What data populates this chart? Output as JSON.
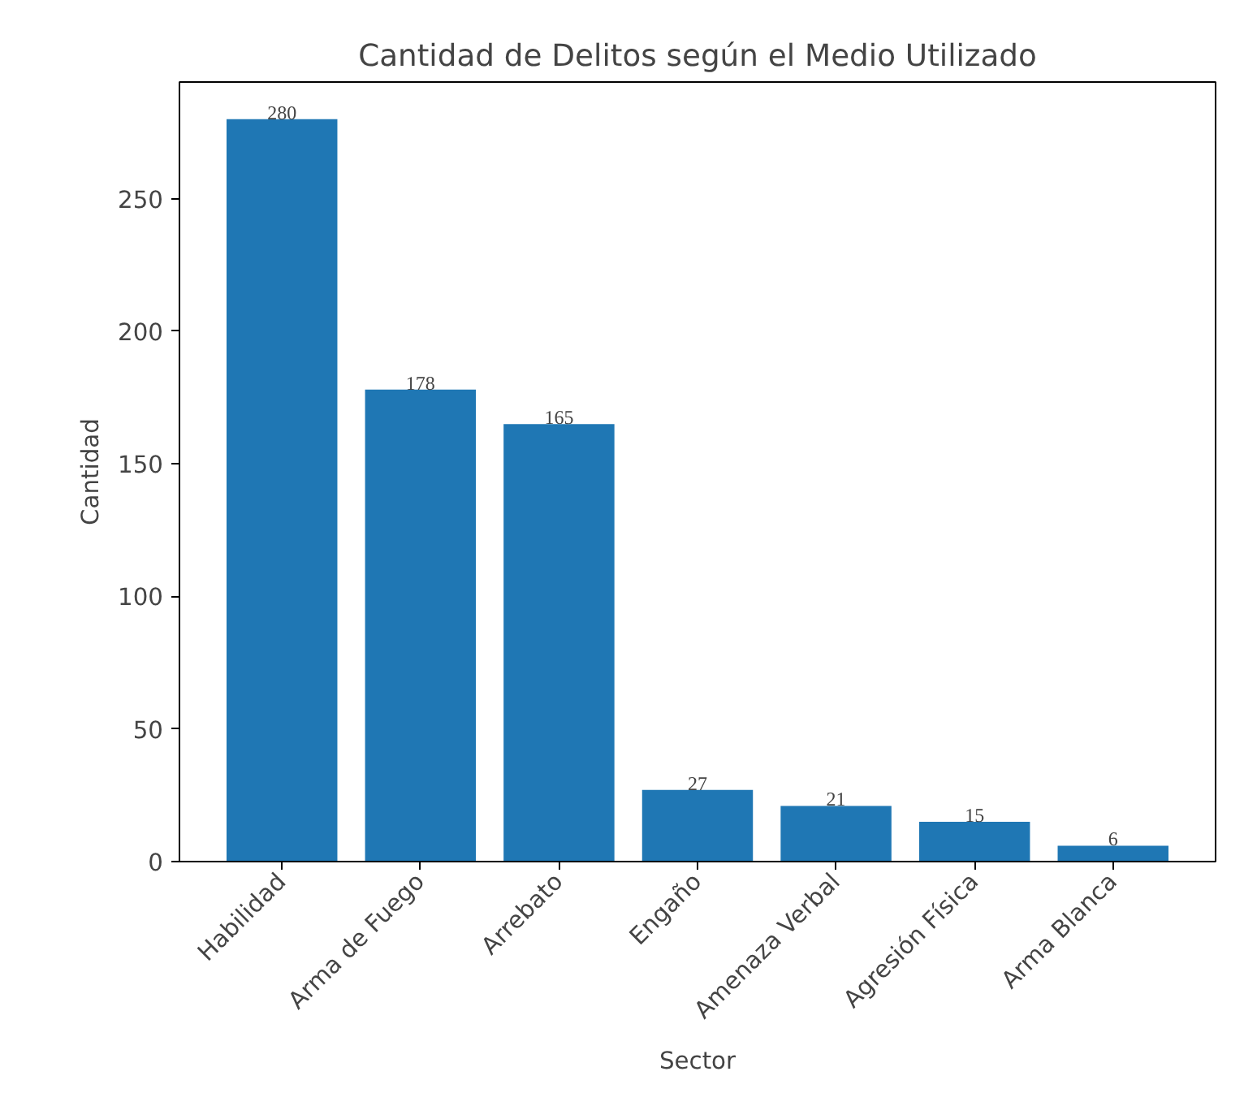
{
  "chart_data": {
    "type": "bar",
    "title": "Cantidad de Delitos según el Medio Utilizado",
    "xlabel": "Sector",
    "ylabel": "Cantidad",
    "categories": [
      "Habilidad",
      "Arma de Fuego",
      "Arrebato",
      "Engaño",
      "Amenaza Verbal",
      "Agresión Física",
      "Arma Blanca"
    ],
    "values": [
      280,
      178,
      165,
      27,
      21,
      15,
      6
    ],
    "color": "#1f77b4",
    "ylim": [
      0,
      294
    ],
    "yticks": [
      0,
      50,
      100,
      150,
      200,
      250
    ],
    "grid": false,
    "data_labels": true
  }
}
